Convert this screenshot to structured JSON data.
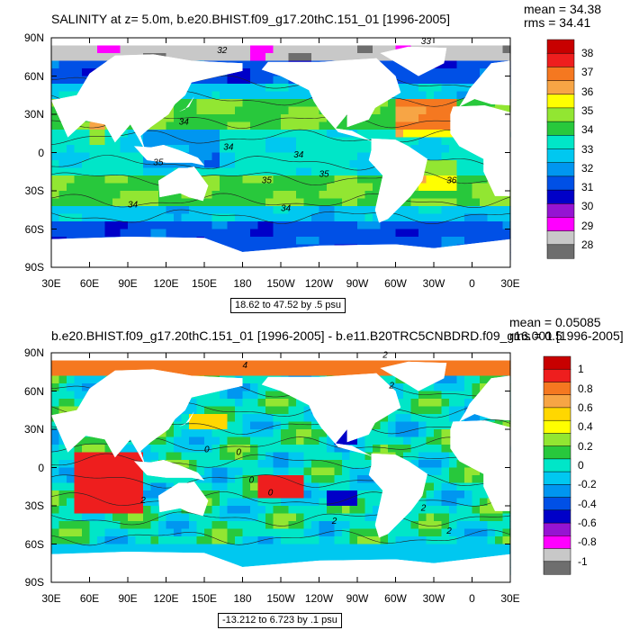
{
  "chart_data": [
    {
      "type": "heatmap",
      "title": "SALINITY at z=   5.0m, b.e20.BHIST.f09_g17.20thC.151_01 [1996-2005]",
      "stats": {
        "mean": "mean = 34.38",
        "rms": "rms = 34.41"
      },
      "range_label": "18.62 to 47.52 by .5 psu",
      "x_ticks": [
        "30E",
        "60E",
        "90E",
        "120E",
        "150E",
        "180",
        "150W",
        "120W",
        "90W",
        "60W",
        "30W",
        "0",
        "30E"
      ],
      "y_ticks": [
        "90N",
        "60N",
        "30N",
        "0",
        "30S",
        "60S",
        "90S"
      ],
      "colorbar": {
        "labels": [
          "38",
          "37",
          "36",
          "35",
          "34",
          "33",
          "32",
          "31",
          "30",
          "29",
          "28"
        ],
        "colors": [
          "#c80000",
          "#ee1e1e",
          "#f57820",
          "#f7a545",
          "#ffff00",
          "#92e632",
          "#28c83c",
          "#00e6c8",
          "#00c8f0",
          "#0096f0",
          "#0050e6",
          "#0000c8",
          "#9614d2",
          "#ff00ff",
          "#c8c8c8",
          "#6e6e6e"
        ]
      },
      "contour_labels": [
        "32",
        "33",
        "34",
        "34",
        "34",
        "35",
        "35",
        "35",
        "36",
        "34",
        "34"
      ]
    },
    {
      "type": "heatmap",
      "title": "b.e20.BHIST.f09_g17.20thC.151_01 [1996-2005] - b.e11.B20TRC5CNBDRD.f09_g16.001 [1996-2005]",
      "stats": {
        "mean": "mean = 0.05085",
        "rms": "rms = 0.5"
      },
      "range_label": "-13.212 to 6.723 by .1 psu",
      "x_ticks": [
        "30E",
        "60E",
        "90E",
        "120E",
        "150E",
        "180",
        "150W",
        "120W",
        "90W",
        "60W",
        "30W",
        "0",
        "30E"
      ],
      "y_ticks": [
        "90N",
        "60N",
        "30N",
        "0",
        "30S",
        "60S",
        "90S"
      ],
      "colorbar": {
        "labels": [
          "1",
          "0.8",
          "0.6",
          "0.4",
          "0.2",
          "0",
          "-0.2",
          "-0.4",
          "-0.6",
          "-0.8",
          "-1"
        ],
        "colors": [
          "#c80000",
          "#ee1e1e",
          "#f57820",
          "#f7a545",
          "#ffd700",
          "#ffff00",
          "#92e632",
          "#28c83c",
          "#00e6c8",
          "#00c8f0",
          "#0096f0",
          "#0050e6",
          "#0000c8",
          "#9614d2",
          "#ff00ff",
          "#c8c8c8",
          "#6e6e6e"
        ]
      },
      "contour_labels": [
        "4",
        "2",
        "2",
        "0",
        "0",
        "0",
        "0",
        "2",
        "2",
        "2",
        "2"
      ]
    }
  ]
}
